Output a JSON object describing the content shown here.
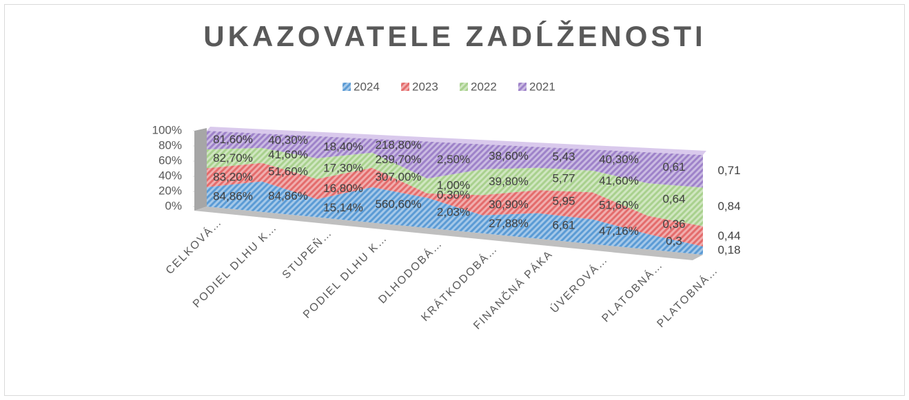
{
  "chart_data": {
    "type": "area",
    "stacking": "percent",
    "title": "UKAZOVATELE ZADĹŽENOSTI",
    "categories": [
      "CELKOVÁ…",
      "PODIEL DLHU K…",
      "STUPEŇ…",
      "PODIEL DLHU K…",
      "DLHODOBÁ…",
      "KRÁTKODOBÁ…",
      "FINANČNÁ PÁKA",
      "ÚVEROVÁ…",
      "PLATOBNÁ…",
      "PLATOBNÁ…"
    ],
    "series": [
      {
        "name": "2024",
        "color": "#5b9bd5",
        "values": [
          84.86,
          84.86,
          15.14,
          560.6,
          2.03,
          27.88,
          6.61,
          47.16,
          0.3,
          0.18
        ],
        "value_labels": [
          "84,86%",
          "84,86%",
          "15,14%",
          "560,60%",
          "2,03%",
          "27,88%",
          "6,61",
          "47,16%",
          "0,3",
          "0,18"
        ]
      },
      {
        "name": "2023",
        "color": "#e46c6c",
        "values": [
          83.2,
          51.6,
          16.8,
          307.0,
          0.3,
          30.9,
          5.95,
          51.6,
          0.36,
          0.44
        ],
        "value_labels": [
          "83,20%",
          "51,60%",
          "16,80%",
          "307,00%",
          "0,30%",
          "30,90%",
          "5,95",
          "51,60%",
          "0,36",
          "0,44"
        ]
      },
      {
        "name": "2022",
        "color": "#a9d18e",
        "values": [
          82.7,
          41.6,
          17.3,
          239.7,
          1.0,
          39.8,
          5.77,
          41.6,
          0.64,
          0.84
        ],
        "value_labels": [
          "82,70%",
          "41,60%",
          "17,30%",
          "239,70%",
          "1,00%",
          "39,80%",
          "5,77",
          "41,60%",
          "0,64",
          "0,84"
        ]
      },
      {
        "name": "2021",
        "color": "#9e82c9",
        "values": [
          81.6,
          40.3,
          18.4,
          218.8,
          2.5,
          38.6,
          5.43,
          40.3,
          0.61,
          0.71
        ],
        "value_labels": [
          "81,60%",
          "40,30%",
          "18,40%",
          "218,80%",
          "2,50%",
          "38,60%",
          "5,43",
          "40,30%",
          "0,61",
          "0,71"
        ]
      }
    ],
    "ylim": [
      0,
      100
    ],
    "yticks": [
      {
        "value": 0,
        "label": "0%"
      },
      {
        "value": 20,
        "label": "20%"
      },
      {
        "value": 40,
        "label": "40%"
      },
      {
        "value": 60,
        "label": "60%"
      },
      {
        "value": 80,
        "label": "80%"
      },
      {
        "value": 100,
        "label": "100%"
      }
    ],
    "legend": "top"
  }
}
